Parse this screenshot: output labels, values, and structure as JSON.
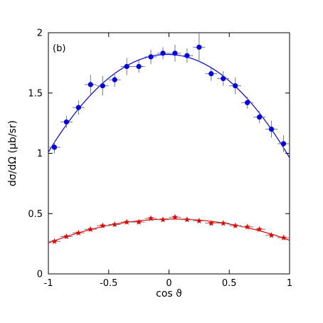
{
  "chart_data": {
    "type": "scatter",
    "panel_label": "(b)",
    "xlabel": "cos ϑ",
    "ylabel": "dσ/dΩ (μb/sr)",
    "xlim": [
      -1,
      1
    ],
    "ylim": [
      0,
      2
    ],
    "x_ticks": [
      -1,
      -0.5,
      0,
      0.5,
      1
    ],
    "x_tick_labels": [
      "-1",
      "-0.5",
      "0",
      "0.5",
      "1"
    ],
    "y_ticks": [
      0,
      0.5,
      1,
      1.5,
      2
    ],
    "y_tick_labels": [
      "0",
      "0.5",
      "1",
      "1.5",
      "2"
    ],
    "grid": false,
    "series": [
      {
        "marker": "circle",
        "color": "#0000ee",
        "x": [
          -0.95,
          -0.85,
          -0.75,
          -0.65,
          -0.55,
          -0.45,
          -0.35,
          -0.25,
          -0.15,
          -0.05,
          0.05,
          0.15,
          0.25,
          0.35,
          0.45,
          0.55,
          0.65,
          0.75,
          0.85,
          0.95
        ],
        "y": [
          1.05,
          1.26,
          1.38,
          1.57,
          1.56,
          1.61,
          1.72,
          1.72,
          1.8,
          1.83,
          1.83,
          1.81,
          1.88,
          1.66,
          1.62,
          1.56,
          1.42,
          1.3,
          1.2,
          1.08
        ],
        "yerr": [
          0.05,
          0.05,
          0.06,
          0.08,
          0.08,
          0.06,
          0.07,
          0.05,
          0.06,
          0.05,
          0.07,
          0.06,
          0.12,
          0.06,
          0.06,
          0.07,
          0.05,
          0.05,
          0.07,
          0.07
        ],
        "xerr": 0.05,
        "fit": [
          1.0,
          0.805,
          -0.81
        ]
      },
      {
        "marker": "star",
        "color": "#ee0000",
        "x": [
          -0.95,
          -0.85,
          -0.75,
          -0.65,
          -0.55,
          -0.45,
          -0.35,
          -0.25,
          -0.15,
          -0.05,
          0.05,
          0.15,
          0.25,
          0.35,
          0.45,
          0.55,
          0.65,
          0.75,
          0.85,
          0.95
        ],
        "y": [
          0.27,
          0.31,
          0.34,
          0.37,
          0.4,
          0.41,
          0.43,
          0.43,
          0.46,
          0.45,
          0.47,
          0.45,
          0.44,
          0.42,
          0.42,
          0.4,
          0.39,
          0.37,
          0.32,
          0.3
        ],
        "yerr": [
          0.015,
          0.015,
          0.015,
          0.015,
          0.015,
          0.015,
          0.015,
          0.015,
          0.015,
          0.015,
          0.015,
          0.015,
          0.015,
          0.015,
          0.015,
          0.015,
          0.015,
          0.015,
          0.015,
          0.015
        ],
        "xerr": 0.05,
        "fit": [
          0.265,
          0.192,
          -0.185
        ]
      }
    ]
  }
}
